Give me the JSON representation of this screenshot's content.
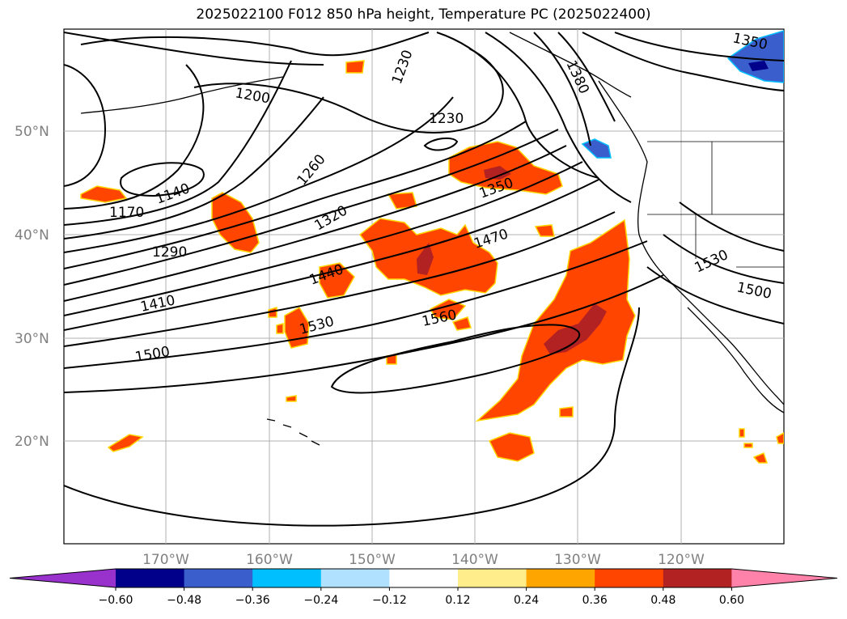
{
  "title": "2025022100 F012 850 hPa height, Temperature PC (2025022400)",
  "lat_labels": [
    "50°N",
    "40°N",
    "30°N",
    "20°N"
  ],
  "lon_labels": [
    "170°W",
    "160°W",
    "150°W",
    "140°W",
    "130°W",
    "120°W"
  ],
  "contour_labels": {
    "c1350_ne": "1350",
    "c1380": "1380",
    "c1200": "1200",
    "c1230_a": "1230",
    "c1230_b": "1230",
    "c1260": "1260",
    "c1140": "1140",
    "c1170": "1170",
    "c1290": "1290",
    "c1320": "1320",
    "c1350": "1350",
    "c1440": "1440",
    "c1470": "1470",
    "c1410": "1410",
    "c1530_a": "1530",
    "c1560": "1560",
    "c1500_a": "1500",
    "c1530_b": "1530",
    "c1500_b": "1500"
  },
  "colorbar": {
    "ticks": [
      "−0.60",
      "−0.48",
      "−0.36",
      "−0.24",
      "−0.12",
      "0.12",
      "0.24",
      "0.36",
      "0.48",
      "0.60"
    ],
    "colors": [
      "#9932cc",
      "#00008b",
      "#3a5fcd",
      "#00bfff",
      "#b0e2ff",
      "#ffffff",
      "#ffec8b",
      "#ffa500",
      "#ff4500",
      "#b22222",
      "#ff82ab"
    ]
  },
  "colors": {
    "warm_fill": "#ff4500",
    "hot_fill": "#b22222",
    "warm_edge": "#ffd700",
    "cold_fill": "#3a5fcd",
    "very_cold_fill": "#00008b",
    "contour": "#000000",
    "grid": "#b0b0b0"
  }
}
